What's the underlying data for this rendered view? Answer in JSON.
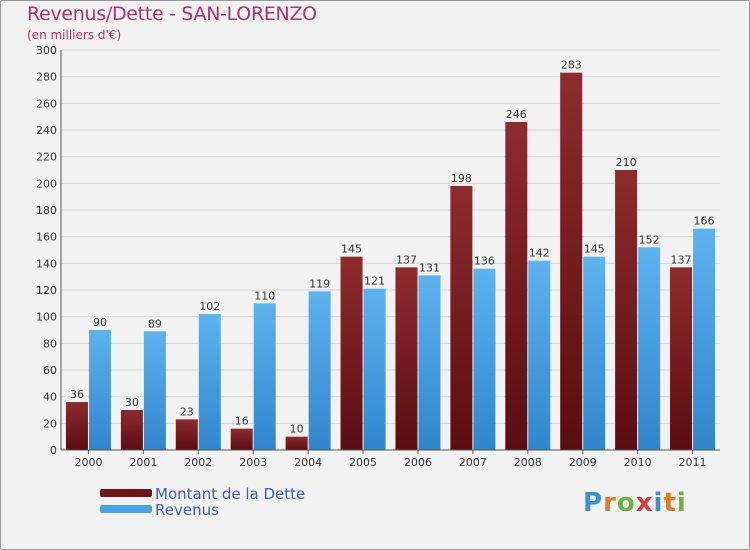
{
  "chart_data": {
    "type": "bar",
    "title": "Revenus/Dette - SAN-LORENZO",
    "subtitle": "(en milliers d'€)",
    "categories": [
      "2000",
      "2001",
      "2002",
      "2003",
      "2004",
      "2005",
      "2006",
      "2007",
      "2008",
      "2009",
      "2010",
      "2011"
    ],
    "series": [
      {
        "name": "Montant de la Dette",
        "color": "#7a1f22",
        "values": [
          36,
          30,
          23,
          16,
          10,
          145,
          137,
          198,
          246,
          283,
          210,
          137
        ]
      },
      {
        "name": "Revenus",
        "color": "#4aa3e4",
        "values": [
          90,
          89,
          102,
          110,
          119,
          121,
          131,
          136,
          142,
          145,
          152,
          166
        ]
      }
    ],
    "ylim": [
      0,
      300
    ],
    "yticks": [
      0,
      20,
      40,
      60,
      80,
      100,
      120,
      140,
      160,
      180,
      200,
      220,
      240,
      260,
      280,
      300
    ],
    "grid": true,
    "legend_position": "bottom-left"
  },
  "logo": {
    "text": "Proxiti",
    "letters": [
      "P",
      "r",
      "o",
      "x",
      "i",
      "t",
      "i"
    ],
    "colors": [
      "#3a8fd8",
      "#e07a1f",
      "#6cb33f",
      "#d43c3c",
      "#3a8fd8",
      "#e07a1f",
      "#6cb33f"
    ]
  }
}
